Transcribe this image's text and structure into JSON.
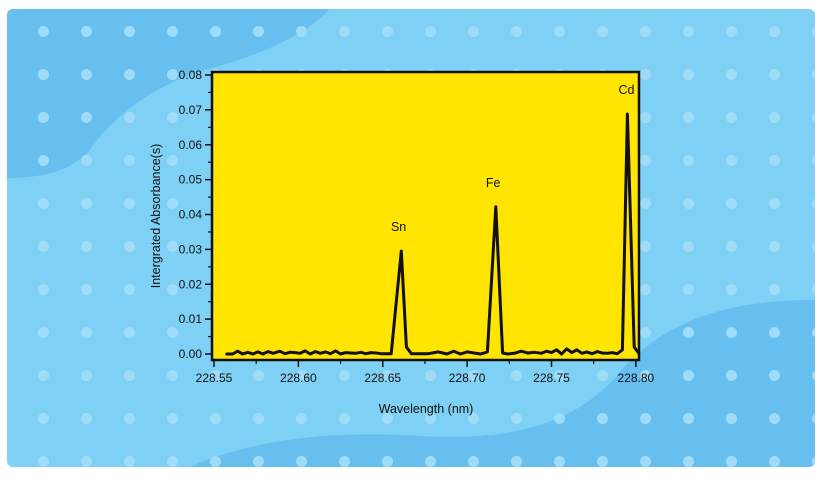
{
  "chart_data": {
    "type": "line",
    "title": "",
    "xlabel": "Wavelength (nm)",
    "ylabel": "Intergrated Absorbance(s)",
    "xlim": [
      228.55,
      228.8
    ],
    "ylim": [
      0.0,
      0.08
    ],
    "x_ticks": [
      "228.55",
      "228.60",
      "228.65",
      "228.70",
      "228.75",
      "228.80"
    ],
    "y_ticks": [
      "0.00",
      "0.01",
      "0.02",
      "0.03",
      "0.04",
      "0.05",
      "0.06",
      "0.07",
      "0.08"
    ],
    "series": [
      {
        "x": [
          228.557,
          228.561,
          228.564,
          228.567,
          228.57,
          228.573,
          228.576,
          228.579,
          228.582,
          228.585,
          228.589,
          228.592,
          228.595,
          228.598,
          228.601,
          228.604,
          228.607,
          228.61,
          228.613,
          228.616,
          228.619,
          228.622,
          228.625,
          228.628,
          228.631,
          228.634,
          228.637,
          228.64,
          228.643,
          228.646,
          228.649,
          228.652,
          228.655,
          228.658,
          228.661,
          228.664,
          228.667,
          228.672,
          228.677,
          228.683,
          228.688,
          228.692,
          228.696,
          228.7,
          228.704,
          228.708,
          228.712,
          228.717,
          228.721,
          228.724,
          228.728,
          228.732,
          228.736,
          228.74,
          228.744,
          228.747,
          228.75,
          228.753,
          228.756,
          228.759,
          228.762,
          228.765,
          228.768,
          228.771,
          228.774,
          228.777,
          228.78,
          228.783,
          228.786,
          228.789,
          228.792,
          228.795,
          228.799,
          228.802
        ],
        "y": [
          0.0,
          0.0,
          0.0008,
          0.0,
          0.0005,
          0.0,
          0.0006,
          0.0,
          0.0007,
          0.0002,
          0.0008,
          0.0001,
          0.0005,
          0.0004,
          0.0002,
          0.0009,
          0.0,
          0.0007,
          0.0002,
          0.0006,
          0.0001,
          0.0009,
          0.0,
          0.0004,
          0.0003,
          0.0002,
          0.0005,
          0.0001,
          0.0004,
          0.0003,
          0.0001,
          0.0001,
          0.0001,
          0.015,
          0.0295,
          0.002,
          0.0001,
          0.0001,
          0.0001,
          0.0006,
          0.0,
          0.0008,
          0.0,
          0.0006,
          0.0003,
          0.0,
          0.0006,
          0.0422,
          0.0003,
          0.0,
          0.0002,
          0.0008,
          0.0003,
          0.0005,
          0.0002,
          0.0008,
          0.0004,
          0.0012,
          0.0,
          0.0015,
          0.0004,
          0.0012,
          0.0002,
          0.0006,
          0.0001,
          0.0007,
          0.0003,
          0.0002,
          0.0004,
          0.0001,
          0.0012,
          0.0688,
          0.002,
          0.0
        ]
      }
    ],
    "annotations": [
      {
        "text": "Sn",
        "x": 228.66,
        "y": 0.0295
      },
      {
        "text": "Fe",
        "x": 228.716,
        "y": 0.0422
      },
      {
        "text": "Cd",
        "x": 228.795,
        "y": 0.0688
      }
    ]
  },
  "colors": {
    "frame_background": "#7fd0f5",
    "background_blob": "#66bfee",
    "dot": "#9fdcf8",
    "plot_background": "#ffe500",
    "line": "#111111",
    "axis": "#111111"
  }
}
